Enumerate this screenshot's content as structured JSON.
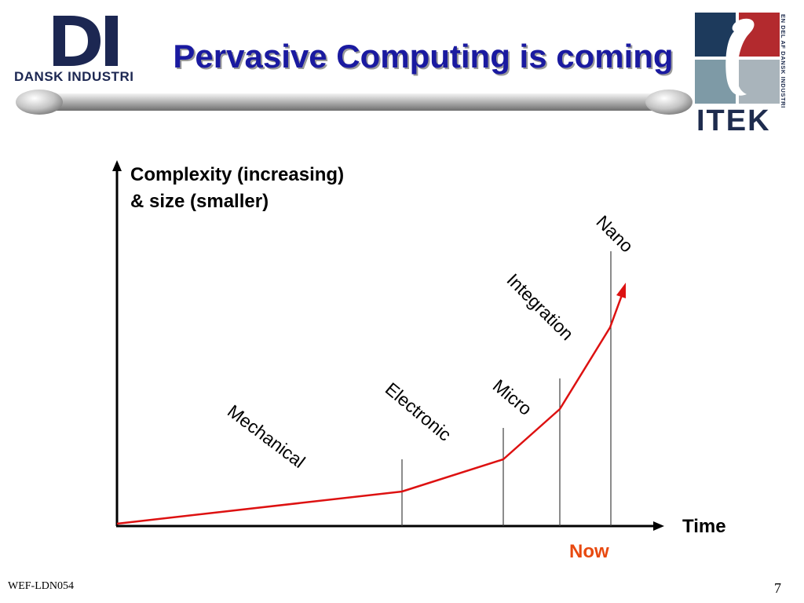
{
  "header": {
    "title": "Pervasive Computing is coming",
    "left_logo": {
      "mark": "DI",
      "name": "DANSK INDUSTRI",
      "color": "#1c2752"
    },
    "right_logo": {
      "name": "ITEK",
      "side_text": "EN DEL AF DANSK INDUSTRI",
      "glyph": "i"
    }
  },
  "diagram": {
    "y_axis_label_line1": "Complexity (increasing)",
    "y_axis_label_line2": "& size (smaller)",
    "x_axis_label": "Time",
    "now_label": "Now",
    "eras": [
      "Mechanical",
      "Electronic",
      "Micro",
      "Integration",
      "Nano"
    ],
    "curve_color": "#dd1111",
    "now_color": "#e8490f"
  },
  "footer": {
    "code": "WEF-LDN054",
    "page": "7"
  }
}
